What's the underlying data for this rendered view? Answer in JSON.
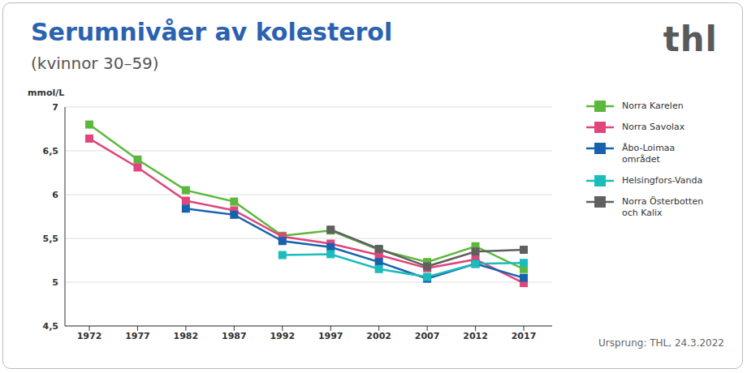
{
  "chart_data": {
    "type": "line",
    "title": "Serumnivåer av kolesterol",
    "subtitle": "(kvinnor 30–59)",
    "y_label": "mmol/L",
    "logo": "thl",
    "source": "Ursprung: THL, 24.3.2022",
    "categories": [
      "1972",
      "1977",
      "1982",
      "1987",
      "1992",
      "1997",
      "2002",
      "2007",
      "2012",
      "2017"
    ],
    "series": [
      {
        "name": "Norra Karelen",
        "color": "#5cb83c",
        "values": [
          6.8,
          6.4,
          6.05,
          5.92,
          5.53,
          5.59,
          5.37,
          5.23,
          5.41,
          5.15
        ]
      },
      {
        "name": "Norra Savolax",
        "color": "#e0457b",
        "values": [
          6.64,
          6.31,
          5.93,
          5.82,
          5.52,
          5.44,
          5.31,
          5.16,
          5.26,
          4.99
        ]
      },
      {
        "name": "Åbo-Loimaa området",
        "color": "#1862ad",
        "values": [
          null,
          null,
          5.84,
          5.77,
          5.47,
          5.4,
          5.23,
          5.04,
          5.21,
          5.05
        ]
      },
      {
        "name": "Helsingfors-Vanda",
        "color": "#1bbcbc",
        "values": [
          null,
          null,
          null,
          null,
          5.31,
          5.32,
          5.15,
          5.06,
          5.21,
          5.22
        ]
      },
      {
        "name": "Norra Österbotten och Kalix",
        "color": "#606060",
        "values": [
          null,
          null,
          null,
          null,
          null,
          5.6,
          5.38,
          5.18,
          5.35,
          5.37
        ]
      }
    ],
    "ylim": [
      4.5,
      7
    ],
    "yticks": [
      {
        "value": 4.5,
        "label": "4,5"
      },
      5,
      {
        "value": 5.5,
        "label": "5,5"
      },
      6,
      {
        "value": 6.5,
        "label": "6,5"
      },
      7
    ],
    "grid": true,
    "marker": "square",
    "line_style": "solid",
    "legend": "right"
  }
}
